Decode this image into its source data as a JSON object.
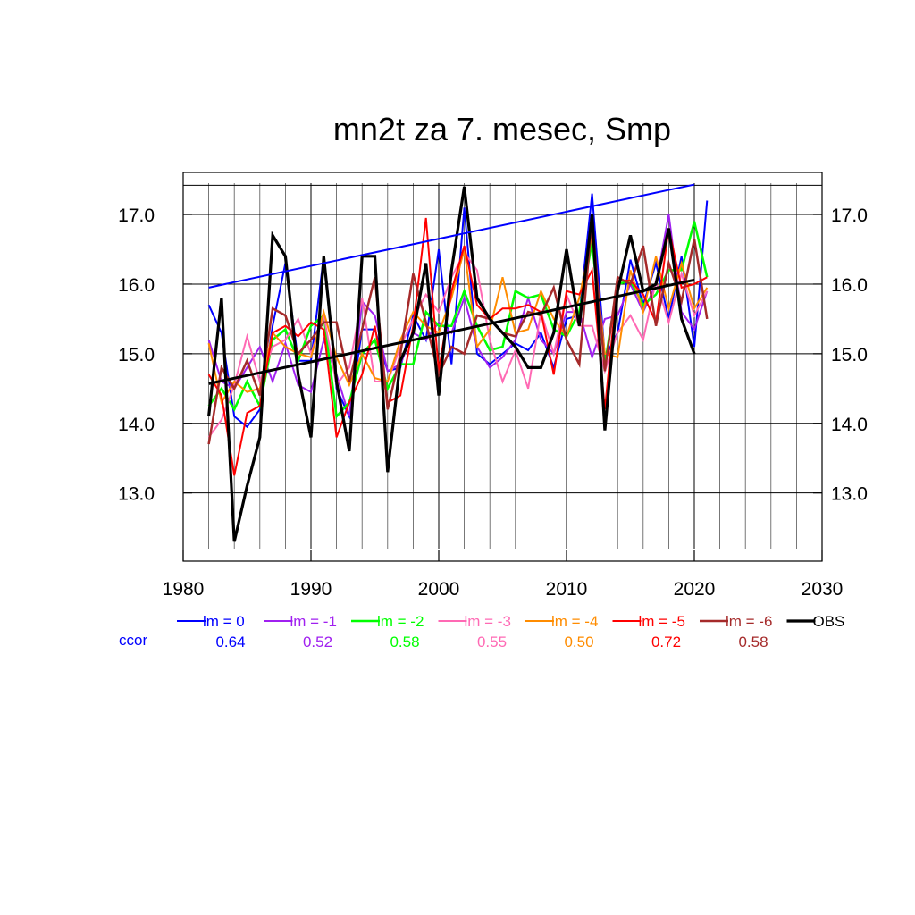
{
  "chart_data": {
    "type": "line",
    "title": "mn2t za 7. mesec, Smp",
    "xlabel": "",
    "ylabel": "",
    "xlim": [
      1980,
      2030
    ],
    "ylim": [
      12.2,
      17.45
    ],
    "x_ticks": [
      1980,
      1990,
      2000,
      2010,
      2020,
      2030
    ],
    "x_tick_labels": [
      "1980",
      "1990",
      "2000",
      "2010",
      "2020",
      "2030"
    ],
    "y_ticks": [
      13.0,
      14.0,
      15.0,
      16.0,
      17.0
    ],
    "y_tick_labels": [
      "13.0",
      "14.0",
      "15.0",
      "16.0",
      "17.0"
    ],
    "grid": true,
    "ccor_label": "ccor",
    "ccor_color": "#0000ff",
    "series": [
      {
        "name": "lm = 0",
        "ccor": "0.64",
        "color": "#0000ff",
        "width": 2,
        "x": [
          1982,
          1983,
          1984,
          1985,
          1986,
          1987,
          1988,
          1989,
          1990,
          1991,
          1992,
          1993,
          1994,
          1995,
          1996,
          1997,
          1998,
          1999,
          2000,
          2001,
          2002,
          2003,
          2004,
          2005,
          2006,
          2007,
          2008,
          2009,
          2010,
          2011,
          2012,
          2013,
          2014,
          2015,
          2016,
          2017,
          2018,
          2019,
          2020,
          2021
        ],
        "y": [
          15.7,
          15.3,
          14.1,
          13.95,
          14.2,
          15.4,
          16.3,
          14.9,
          14.9,
          16.4,
          14.5,
          14.1,
          15.35,
          15.35,
          14.75,
          14.8,
          15.55,
          15.2,
          16.5,
          14.85,
          17.1,
          15.0,
          14.85,
          15.0,
          15.15,
          15.05,
          15.3,
          14.8,
          15.5,
          15.55,
          17.3,
          14.95,
          15.3,
          16.35,
          15.7,
          16.3,
          15.5,
          16.4,
          15.1,
          17.2
        ]
      },
      {
        "name": "lm = -1",
        "ccor": "0.52",
        "color": "#a020f0",
        "width": 2,
        "x": [
          1982,
          1983,
          1984,
          1985,
          1986,
          1987,
          1988,
          1989,
          1990,
          1991,
          1992,
          1993,
          1994,
          1995,
          1996,
          1997,
          1998,
          1999,
          2000,
          2001,
          2002,
          2003,
          2004,
          2005,
          2006,
          2007,
          2008,
          2009,
          2010,
          2011,
          2012,
          2013,
          2014,
          2015,
          2016,
          2017,
          2018,
          2019,
          2020,
          2021
        ],
        "y": [
          15.2,
          14.6,
          14.5,
          14.8,
          15.1,
          14.6,
          15.15,
          14.55,
          14.45,
          15.2,
          14.7,
          14.1,
          15.75,
          15.55,
          14.75,
          14.85,
          15.3,
          15.2,
          15.45,
          15.3,
          15.8,
          15.1,
          14.8,
          14.95,
          15.2,
          15.8,
          15.2,
          15.0,
          15.6,
          15.6,
          14.95,
          15.5,
          15.55,
          16.0,
          15.6,
          16.0,
          17.0,
          15.6,
          15.35,
          15.9
        ]
      },
      {
        "name": "lm = -2",
        "ccor": "0.58",
        "color": "#00ff00",
        "width": 2.5,
        "x": [
          1982,
          1983,
          1984,
          1985,
          1986,
          1987,
          1988,
          1989,
          1990,
          1991,
          1992,
          1993,
          1994,
          1995,
          1996,
          1997,
          1998,
          1999,
          2000,
          2001,
          2002,
          2003,
          2004,
          2005,
          2006,
          2007,
          2008,
          2009,
          2010,
          2011,
          2012,
          2013,
          2014,
          2015,
          2016,
          2017,
          2018,
          2019,
          2020,
          2021
        ],
        "y": [
          14.25,
          14.5,
          14.2,
          14.6,
          14.25,
          15.2,
          15.35,
          14.9,
          15.4,
          15.55,
          14.1,
          14.3,
          15.0,
          15.2,
          14.5,
          14.85,
          14.85,
          15.6,
          15.4,
          15.4,
          15.9,
          15.4,
          15.05,
          15.1,
          15.9,
          15.8,
          15.85,
          15.35,
          15.25,
          15.6,
          16.6,
          14.85,
          16.0,
          16.05,
          15.7,
          15.85,
          16.2,
          16.2,
          16.9,
          16.1
        ]
      },
      {
        "name": "lm = -3",
        "ccor": "0.55",
        "color": "#ff69b4",
        "width": 2,
        "x": [
          1982,
          1983,
          1984,
          1985,
          1986,
          1987,
          1988,
          1989,
          1990,
          1991,
          1992,
          1993,
          1994,
          1995,
          1996,
          1997,
          1998,
          1999,
          2000,
          2001,
          2002,
          2003,
          2004,
          2005,
          2006,
          2007,
          2008,
          2009,
          2010,
          2011,
          2012,
          2013,
          2014,
          2015,
          2016,
          2017,
          2018,
          2019,
          2020,
          2021
        ],
        "y": [
          13.8,
          14.05,
          14.55,
          15.25,
          14.6,
          15.1,
          15.2,
          15.5,
          15.0,
          15.55,
          14.55,
          14.8,
          15.8,
          14.6,
          14.6,
          15.1,
          15.5,
          15.85,
          15.6,
          16.1,
          16.45,
          16.2,
          15.2,
          14.6,
          15.05,
          14.5,
          15.6,
          15.0,
          15.85,
          15.4,
          15.4,
          14.75,
          15.3,
          15.55,
          15.2,
          16.05,
          15.45,
          16.15,
          15.55,
          15.9
        ]
      },
      {
        "name": "lm = -4",
        "ccor": "0.50",
        "color": "#ff8c00",
        "width": 2,
        "x": [
          1982,
          1983,
          1984,
          1985,
          1986,
          1987,
          1988,
          1989,
          1990,
          1991,
          1992,
          1993,
          1994,
          1995,
          1996,
          1997,
          1998,
          1999,
          2000,
          2001,
          2002,
          2003,
          2004,
          2005,
          2006,
          2007,
          2008,
          2009,
          2010,
          2011,
          2012,
          2013,
          2014,
          2015,
          2016,
          2017,
          2018,
          2019,
          2020,
          2021
        ],
        "y": [
          15.15,
          14.3,
          14.6,
          14.45,
          14.5,
          15.3,
          15.1,
          15.0,
          14.95,
          15.6,
          14.95,
          14.55,
          15.0,
          14.65,
          14.6,
          15.2,
          15.6,
          15.4,
          15.3,
          15.8,
          16.5,
          15.1,
          15.35,
          16.1,
          15.3,
          15.35,
          15.9,
          15.5,
          15.25,
          15.8,
          16.7,
          15.0,
          14.95,
          16.2,
          15.6,
          16.4,
          15.65,
          16.3,
          15.65,
          15.95
        ]
      },
      {
        "name": "lm = -5",
        "ccor": "0.72",
        "color": "#ff0000",
        "width": 2,
        "x": [
          1982,
          1983,
          1984,
          1985,
          1986,
          1987,
          1988,
          1989,
          1990,
          1991,
          1992,
          1993,
          1994,
          1995,
          1996,
          1997,
          1998,
          1999,
          2000,
          2001,
          2002,
          2003,
          2004,
          2005,
          2006,
          2007,
          2008,
          2009,
          2010,
          2011,
          2012,
          2013,
          2014,
          2015,
          2016,
          2017,
          2018,
          2019,
          2020,
          2021
        ],
        "y": [
          14.7,
          14.4,
          13.25,
          14.15,
          14.25,
          15.3,
          15.4,
          15.25,
          15.45,
          15.35,
          13.8,
          14.3,
          14.7,
          15.4,
          14.3,
          14.4,
          15.4,
          16.95,
          14.75,
          15.9,
          16.55,
          15.7,
          15.5,
          15.65,
          15.65,
          15.7,
          15.6,
          14.7,
          15.9,
          15.85,
          16.2,
          14.2,
          16.05,
          16.05,
          15.85,
          15.45,
          16.8,
          15.95,
          16.0,
          16.1
        ]
      },
      {
        "name": "lm = -6",
        "ccor": "0.58",
        "color": "#a52a2a",
        "width": 2.5,
        "x": [
          1982,
          1983,
          1984,
          1985,
          1986,
          1987,
          1988,
          1989,
          1990,
          1991,
          1992,
          1993,
          1994,
          1995,
          1996,
          1997,
          1998,
          1999,
          2000,
          2001,
          2002,
          2003,
          2004,
          2005,
          2006,
          2007,
          2008,
          2009,
          2010,
          2011,
          2012,
          2013,
          2014,
          2015,
          2016,
          2017,
          2018,
          2019,
          2020,
          2021
        ],
        "y": [
          13.7,
          14.8,
          14.5,
          14.9,
          14.4,
          15.65,
          15.55,
          15.0,
          15.2,
          15.45,
          15.45,
          14.6,
          15.35,
          16.1,
          14.2,
          15.0,
          16.15,
          15.45,
          14.7,
          15.1,
          15.0,
          15.55,
          15.5,
          15.3,
          15.25,
          15.6,
          15.55,
          15.95,
          15.2,
          14.85,
          16.95,
          14.75,
          16.1,
          16.0,
          16.55,
          15.4,
          16.3,
          15.75,
          16.65,
          15.5
        ]
      },
      {
        "name": "OBS",
        "ccor": "",
        "color": "#000000",
        "width": 3.2,
        "x": [
          1982,
          1983,
          1984,
          1985,
          1986,
          1987,
          1988,
          1989,
          1990,
          1991,
          1992,
          1993,
          1994,
          1995,
          1996,
          1997,
          1998,
          1999,
          2000,
          2001,
          2002,
          2003,
          2004,
          2005,
          2006,
          2007,
          2008,
          2009,
          2010,
          2011,
          2012,
          2013,
          2014,
          2015,
          2016,
          2017,
          2018,
          2019,
          2020
        ],
        "y": [
          14.1,
          15.8,
          12.3,
          13.1,
          13.8,
          16.7,
          16.4,
          14.7,
          13.8,
          16.4,
          14.6,
          13.6,
          16.4,
          16.4,
          13.3,
          14.9,
          15.3,
          16.3,
          14.4,
          16.2,
          17.4,
          15.8,
          15.5,
          15.3,
          15.1,
          14.8,
          14.8,
          15.3,
          16.5,
          15.4,
          17.0,
          13.9,
          15.9,
          16.7,
          15.9,
          16.0,
          16.8,
          15.5,
          15.0
        ]
      }
    ],
    "trend_lines": [
      {
        "color": "#0000ff",
        "width": 2,
        "x": [
          1982,
          2020
        ],
        "y": [
          15.95,
          17.43
        ]
      },
      {
        "color": "#000000",
        "width": 3,
        "x": [
          1982,
          2020
        ],
        "y": [
          14.57,
          16.06
        ]
      }
    ]
  }
}
